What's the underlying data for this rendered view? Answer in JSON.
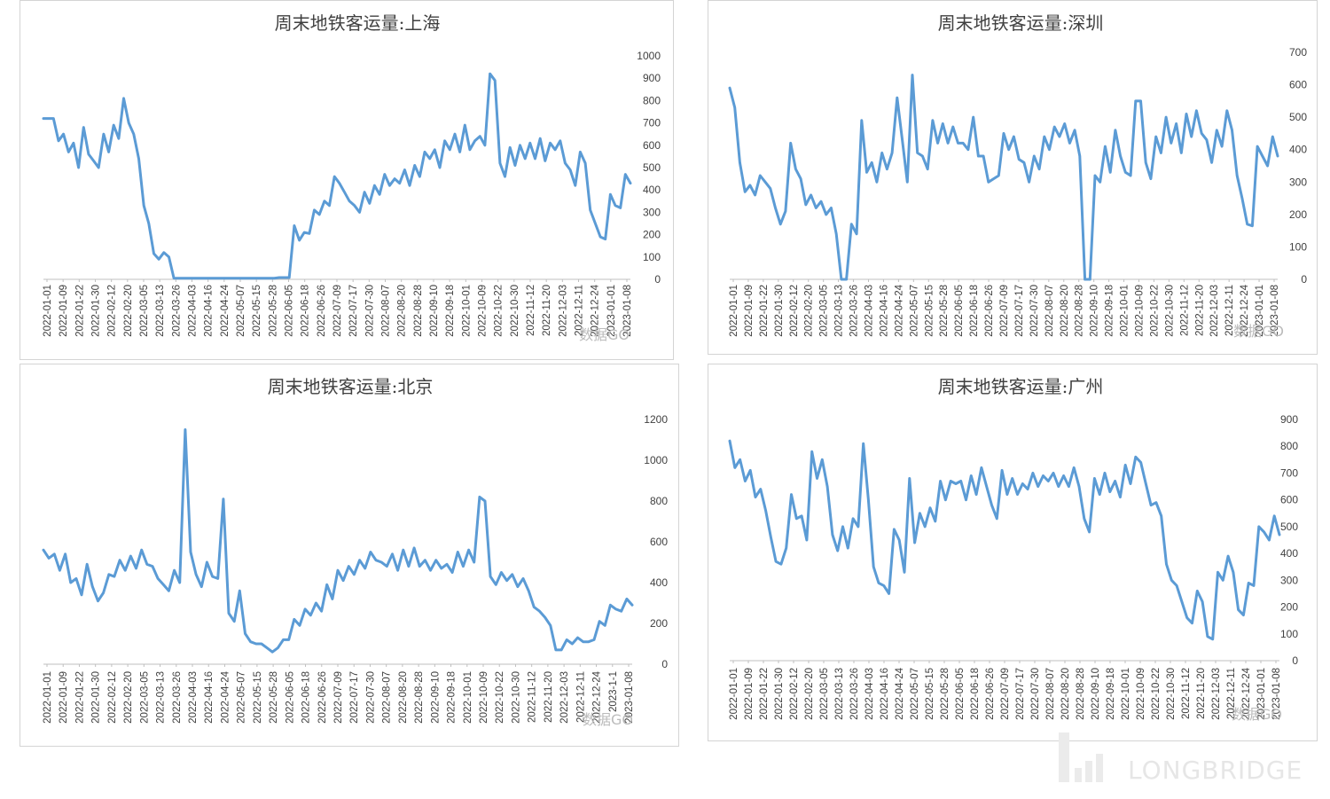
{
  "watermark": "数据GO",
  "brand": "LONGBRIDGE",
  "line_color": "#5B9BD5",
  "chart_data": [
    {
      "type": "line",
      "title": "周末地铁客运量:上海",
      "ylim": [
        0,
        1000
      ],
      "yticks": [
        0,
        100,
        200,
        300,
        400,
        500,
        600,
        700,
        800,
        900,
        1000
      ],
      "tick_labels": [
        "2022-01-01",
        "2022-01-09",
        "2022-01-22",
        "2022-01-30",
        "2022-02-12",
        "2022-02-20",
        "2022-03-05",
        "2022-03-13",
        "2022-03-26",
        "2022-04-03",
        "2022-04-16",
        "2022-04-24",
        "2022-05-07",
        "2022-05-15",
        "2022-05-28",
        "2022-06-05",
        "2022-06-18",
        "2022-06-26",
        "2022-07-09",
        "2022-07-17",
        "2022-07-30",
        "2022-08-07",
        "2022-08-20",
        "2022-08-28",
        "2022-09-10",
        "2022-09-18",
        "2022-10-01",
        "2022-10-09",
        "2022-10-22",
        "2022-10-30",
        "2022-11-12",
        "2022-11-20",
        "2022-12-03",
        "2022-12-11",
        "2022-12-24",
        "2023-01-01",
        "2023-01-08"
      ],
      "series": [
        {
          "values": [
            720,
            720,
            720,
            620,
            650,
            570,
            610,
            500,
            680,
            560,
            530,
            500,
            650,
            570,
            690,
            630,
            810,
            700,
            650,
            540,
            330,
            250,
            115,
            90,
            120,
            100,
            5,
            5,
            5,
            5,
            5,
            5,
            5,
            5,
            5,
            5,
            5,
            5,
            5,
            5,
            5,
            5,
            5,
            5,
            5,
            5,
            5,
            8,
            8,
            8,
            240,
            175,
            210,
            205,
            310,
            290,
            350,
            330,
            460,
            430,
            390,
            350,
            330,
            300,
            390,
            340,
            420,
            380,
            470,
            420,
            450,
            430,
            490,
            420,
            510,
            460,
            570,
            540,
            580,
            500,
            620,
            580,
            650,
            570,
            690,
            580,
            620,
            640,
            600,
            920,
            890,
            520,
            460,
            590,
            510,
            600,
            540,
            610,
            540,
            630,
            530,
            610,
            580,
            620,
            520,
            490,
            420,
            570,
            520,
            310,
            250,
            190,
            180,
            380,
            330,
            320,
            470,
            430
          ]
        }
      ]
    },
    {
      "type": "line",
      "title": "周末地铁客运量:深圳",
      "ylim": [
        0,
        700
      ],
      "yticks": [
        0,
        100,
        200,
        300,
        400,
        500,
        600,
        700
      ],
      "tick_labels": [
        "2022-01-01",
        "2022-01-09",
        "2022-01-22",
        "2022-01-30",
        "2022-02-12",
        "2022-02-20",
        "2022-03-05",
        "2022-03-13",
        "2022-03-26",
        "2022-04-03",
        "2022-04-16",
        "2022-04-24",
        "2022-05-07",
        "2022-05-15",
        "2022-05-28",
        "2022-06-05",
        "2022-06-18",
        "2022-06-26",
        "2022-07-09",
        "2022-07-17",
        "2022-07-30",
        "2022-08-07",
        "2022-08-20",
        "2022-08-28",
        "2022-09-10",
        "2022-09-18",
        "2022-10-01",
        "2022-10-09",
        "2022-10-22",
        "2022-10-30",
        "2022-11-12",
        "2022-11-20",
        "2022-12-03",
        "2022-12-11",
        "2022-12-24",
        "2023-01-01",
        "2023-01-08"
      ],
      "series": [
        {
          "values": [
            590,
            530,
            360,
            270,
            290,
            260,
            320,
            300,
            280,
            220,
            170,
            210,
            420,
            340,
            310,
            230,
            260,
            220,
            240,
            200,
            220,
            140,
            0,
            0,
            170,
            140,
            490,
            330,
            360,
            300,
            390,
            340,
            390,
            560,
            430,
            300,
            630,
            390,
            380,
            340,
            490,
            420,
            480,
            420,
            470,
            420,
            420,
            400,
            500,
            380,
            380,
            300,
            310,
            320,
            450,
            400,
            440,
            370,
            360,
            300,
            380,
            340,
            440,
            400,
            470,
            440,
            480,
            420,
            460,
            380,
            0,
            0,
            320,
            300,
            410,
            330,
            460,
            380,
            330,
            320,
            550,
            550,
            360,
            310,
            440,
            390,
            500,
            420,
            480,
            390,
            510,
            440,
            520,
            450,
            430,
            360,
            460,
            410,
            520,
            460,
            320,
            250,
            170,
            165,
            410,
            380,
            350,
            440,
            380
          ]
        }
      ]
    },
    {
      "type": "line",
      "title": "周末地铁客运量:北京",
      "ylim": [
        0,
        1200
      ],
      "yticks": [
        0,
        200,
        400,
        600,
        800,
        1000,
        1200
      ],
      "tick_labels": [
        "2022-01-01",
        "2022-01-09",
        "2022-01-22",
        "2022-01-30",
        "2022-02-12",
        "2022-02-20",
        "2022-03-05",
        "2022-03-13",
        "2022-03-26",
        "2022-04-03",
        "2022-04-16",
        "2022-04-24",
        "2022-05-07",
        "2022-05-15",
        "2022-05-28",
        "2022-06-05",
        "2022-06-18",
        "2022-06-26",
        "2022-07-09",
        "2022-07-17",
        "2022-07-30",
        "2022-08-07",
        "2022-08-20",
        "2022-08-28",
        "2022-09-10",
        "2022-09-18",
        "2022-10-01",
        "2022-10-09",
        "2022-10-22",
        "2022-10-30",
        "2022-11-12",
        "2022-11-20",
        "2022-12-03",
        "2022-12-11",
        "2022-12-24",
        "2023-1-1",
        "2023-01-08"
      ],
      "series": [
        {
          "values": [
            560,
            520,
            540,
            460,
            540,
            400,
            420,
            340,
            490,
            380,
            310,
            350,
            440,
            430,
            510,
            460,
            530,
            470,
            560,
            490,
            480,
            420,
            390,
            360,
            460,
            400,
            1150,
            550,
            440,
            380,
            500,
            430,
            420,
            810,
            250,
            210,
            360,
            150,
            110,
            100,
            100,
            80,
            60,
            80,
            120,
            120,
            220,
            190,
            270,
            240,
            300,
            260,
            390,
            320,
            460,
            410,
            480,
            440,
            510,
            470,
            550,
            510,
            500,
            480,
            540,
            460,
            560,
            480,
            570,
            480,
            510,
            460,
            510,
            470,
            490,
            450,
            550,
            480,
            560,
            500,
            820,
            800,
            430,
            390,
            450,
            410,
            440,
            380,
            420,
            360,
            280,
            260,
            230,
            190,
            70,
            70,
            120,
            100,
            130,
            110,
            110,
            120,
            210,
            190,
            290,
            270,
            260,
            320,
            290
          ]
        }
      ]
    },
    {
      "type": "line",
      "title": "周末地铁客运量:广州",
      "ylim": [
        0,
        900
      ],
      "yticks": [
        0,
        100,
        200,
        300,
        400,
        500,
        600,
        700,
        800,
        900
      ],
      "tick_labels": [
        "2022-01-01",
        "2022-01-09",
        "2022-01-22",
        "2022-01-30",
        "2022-02-12",
        "2022-02-20",
        "2022-03-05",
        "2022-03-13",
        "2022-03-26",
        "2022-04-03",
        "2022-04-16",
        "2022-04-24",
        "2022-05-07",
        "2022-05-15",
        "2022-05-28",
        "2022-06-05",
        "2022-06-18",
        "2022-06-26",
        "2022-07-09",
        "2022-07-17",
        "2022-07-30",
        "2022-08-07",
        "2022-08-20",
        "2022-08-28",
        "2022-09-10",
        "2022-09-18",
        "2022-10-01",
        "2022-10-09",
        "2022-10-22",
        "2022-10-30",
        "2022-11-12",
        "2022-11-20",
        "2022-12-03",
        "2022-12-11",
        "2022-12-24",
        "2023-01-01",
        "2023-01-08"
      ],
      "series": [
        {
          "values": [
            820,
            720,
            750,
            670,
            710,
            610,
            640,
            560,
            460,
            370,
            360,
            420,
            620,
            530,
            540,
            450,
            780,
            680,
            750,
            650,
            470,
            410,
            500,
            420,
            530,
            500,
            810,
            600,
            350,
            290,
            280,
            250,
            490,
            450,
            330,
            680,
            440,
            550,
            500,
            570,
            520,
            670,
            600,
            670,
            660,
            670,
            600,
            690,
            620,
            720,
            650,
            580,
            530,
            710,
            620,
            680,
            620,
            660,
            640,
            700,
            650,
            690,
            670,
            700,
            650,
            690,
            650,
            720,
            650,
            530,
            480,
            680,
            620,
            700,
            630,
            670,
            610,
            730,
            660,
            760,
            740,
            660,
            580,
            590,
            540,
            360,
            300,
            280,
            220,
            160,
            140,
            260,
            220,
            90,
            80,
            330,
            300,
            390,
            330,
            190,
            170,
            290,
            280,
            500,
            480,
            450,
            540,
            470
          ]
        }
      ]
    }
  ]
}
